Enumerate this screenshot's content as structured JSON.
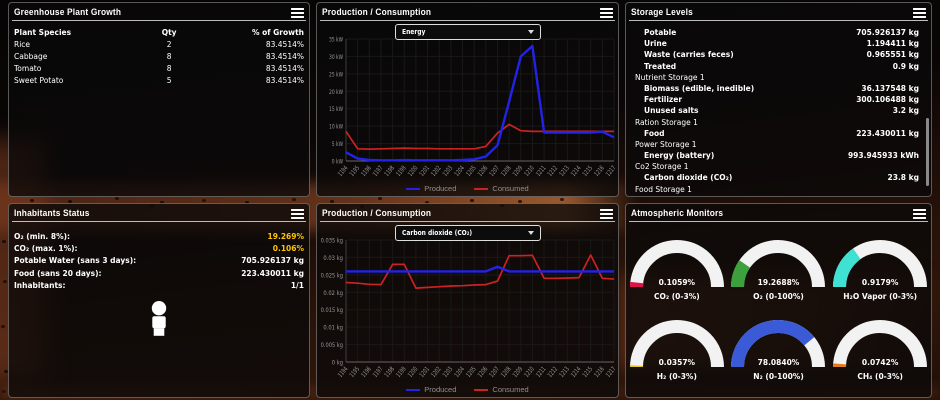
{
  "greenhouse": {
    "title": "Greenhouse Plant Growth",
    "columns": [
      "Plant Species",
      "Qty",
      "% of Growth"
    ],
    "rows": [
      [
        "Rice",
        "2",
        "83.4514%"
      ],
      [
        "Cabbage",
        "8",
        "83.4514%"
      ],
      [
        "Tomato",
        "8",
        "83.4514%"
      ],
      [
        "Sweet Potato",
        "5",
        "83.4514%"
      ]
    ]
  },
  "production_energy": {
    "title": "Production / Consumption",
    "selector": "Energy",
    "chart_data": {
      "type": "line",
      "x": [
        1194,
        1195,
        1196,
        1197,
        1198,
        1199,
        1200,
        1201,
        1202,
        1203,
        1204,
        1205,
        1206,
        1207,
        1208,
        1209,
        1210,
        1211,
        1212,
        1213,
        1214,
        1215,
        1216,
        1217
      ],
      "ymax": 35,
      "ylabels": [
        {
          "v": 0,
          "t": "0 kW"
        },
        {
          "v": 5,
          "t": "5 kW"
        },
        {
          "v": 10,
          "t": "10 kW"
        },
        {
          "v": 15,
          "t": "15 kW"
        },
        {
          "v": 20,
          "t": "20 kW"
        },
        {
          "v": 25,
          "t": "25 kW"
        },
        {
          "v": 30,
          "t": "30 kW"
        },
        {
          "v": 35,
          "t": "35 kW"
        }
      ],
      "series": [
        {
          "name": "Produced",
          "color": "#2323e8",
          "values": [
            2.5,
            0.7,
            0.3,
            0.2,
            0.2,
            0.25,
            0.2,
            0.2,
            0.2,
            0.2,
            0.3,
            0.5,
            1.3,
            4.5,
            17,
            30,
            33,
            8.15,
            8.15,
            8.15,
            8.15,
            8.15,
            8.4,
            6.8
          ]
        },
        {
          "name": "Consumed",
          "color": "#cc2222",
          "values": [
            8.5,
            3.5,
            3.4,
            3.5,
            3.6,
            3.7,
            3.6,
            3.6,
            3.5,
            3.5,
            3.5,
            3.5,
            4.2,
            8.0,
            10.5,
            8.7,
            8.5,
            8.5,
            8.5,
            8.5,
            8.5,
            8.5,
            8.5,
            8.5
          ]
        }
      ]
    }
  },
  "storage": {
    "title": "Storage Levels",
    "items": [
      {
        "label": "Potable",
        "value": "705.926137 kg",
        "indent": true
      },
      {
        "label": "Urine",
        "value": "1.194411 kg",
        "indent": true
      },
      {
        "label": "Waste (carries feces)",
        "value": "0.965551 kg",
        "indent": true
      },
      {
        "label": "Treated",
        "value": "0.9 kg",
        "indent": true
      },
      {
        "label": "Nutrient Storage 1",
        "value": "",
        "indent": false
      },
      {
        "label": "Biomass (edible, inedible)",
        "value": "36.137548 kg",
        "indent": true
      },
      {
        "label": "Fertilizer",
        "value": "300.106488 kg",
        "indent": true
      },
      {
        "label": "Unused salts",
        "value": "3.2 kg",
        "indent": true
      },
      {
        "label": "Ration Storage 1",
        "value": "",
        "indent": false
      },
      {
        "label": "Food",
        "value": "223.430011 kg",
        "indent": true
      },
      {
        "label": "Power Storage 1",
        "value": "",
        "indent": false
      },
      {
        "label": "Energy (battery)",
        "value": "993.945933 kWh",
        "indent": true
      },
      {
        "label": "Co2 Storage 1",
        "value": "",
        "indent": false
      },
      {
        "label": "Carbon dioxide (CO₂)",
        "value": "23.8 kg",
        "indent": true
      },
      {
        "label": "Food Storage 1",
        "value": "",
        "indent": false
      }
    ]
  },
  "inhabitants": {
    "title": "Inhabitants Status",
    "rows": [
      {
        "label": "O₂ (min. 8%):",
        "value": "19.269%",
        "highlight": true
      },
      {
        "label": "CO₂ (max. 1%):",
        "value": "0.106%",
        "highlight": true
      },
      {
        "label": "Potable Water (sans 3 days):",
        "value": "705.926137 kg",
        "highlight": false
      },
      {
        "label": "Food (sans 20 days):",
        "value": "223.430011 kg",
        "highlight": false
      },
      {
        "label": "Inhabitants:",
        "value": "1/1",
        "highlight": false
      }
    ]
  },
  "production_co2": {
    "title": "Production / Consumption",
    "selector": "Carbon dioxide (CO₂)",
    "chart_data": {
      "type": "line",
      "x": [
        1194,
        1195,
        1196,
        1197,
        1198,
        1199,
        1200,
        1201,
        1202,
        1203,
        1204,
        1205,
        1206,
        1207,
        1208,
        1209,
        1210,
        1211,
        1212,
        1213,
        1214,
        1215,
        1216,
        1217
      ],
      "ymax": 0.035,
      "ylabels": [
        {
          "v": 0,
          "t": "0 kg"
        },
        {
          "v": 0.005,
          "t": "0.005 kg"
        },
        {
          "v": 0.01,
          "t": "0.01 kg"
        },
        {
          "v": 0.015,
          "t": "0.015 kg"
        },
        {
          "v": 0.02,
          "t": "0.02 kg"
        },
        {
          "v": 0.025,
          "t": "0.025 kg"
        },
        {
          "v": 0.03,
          "t": "0.03 kg"
        },
        {
          "v": 0.035,
          "t": "0.035 kg"
        }
      ],
      "series": [
        {
          "name": "Produced",
          "color": "#2323e8",
          "values": [
            0.026,
            0.026,
            0.026,
            0.026,
            0.026,
            0.026,
            0.026,
            0.026,
            0.026,
            0.026,
            0.026,
            0.026,
            0.026,
            0.0273,
            0.026,
            0.026,
            0.026,
            0.026,
            0.026,
            0.026,
            0.026,
            0.026,
            0.026,
            0.026
          ]
        },
        {
          "name": "Consumed",
          "color": "#cc2222",
          "values": [
            0.0228,
            0.0226,
            0.0223,
            0.0222,
            0.028,
            0.028,
            0.0212,
            0.0214,
            0.0216,
            0.0218,
            0.0219,
            0.0221,
            0.0222,
            0.0232,
            0.0305,
            0.0305,
            0.0306,
            0.024,
            0.024,
            0.0241,
            0.0242,
            0.0307,
            0.024,
            0.0238
          ]
        }
      ]
    }
  },
  "atmosphere": {
    "title": "Atmospheric Monitors",
    "gauges": [
      {
        "name": "co2",
        "label": "CO₂ (0-3%)",
        "value": "0.1059%",
        "percent": 3.53,
        "color": "#dc1448"
      },
      {
        "name": "o2",
        "label": "O₂ (0-100%)",
        "value": "19.2688%",
        "percent": 19.27,
        "color": "#3ca03c"
      },
      {
        "name": "h2o-vapor",
        "label": "H₂O Vapor (0-3%)",
        "value": "0.9179%",
        "percent": 30.6,
        "color": "#3fe2d2"
      },
      {
        "name": "h2",
        "label": "H₂ (0-3%)",
        "value": "0.0357%",
        "percent": 1.19,
        "color": "#e3c522"
      },
      {
        "name": "n2",
        "label": "N₂ (0-100%)",
        "value": "78.0840%",
        "percent": 78.08,
        "color": "#3a5ad8"
      },
      {
        "name": "ch4",
        "label": "CH₄ (0-3%)",
        "value": "0.0742%",
        "percent": 2.47,
        "color": "#e07b22"
      }
    ]
  },
  "legend": {
    "produced": "Produced",
    "consumed": "Consumed"
  }
}
